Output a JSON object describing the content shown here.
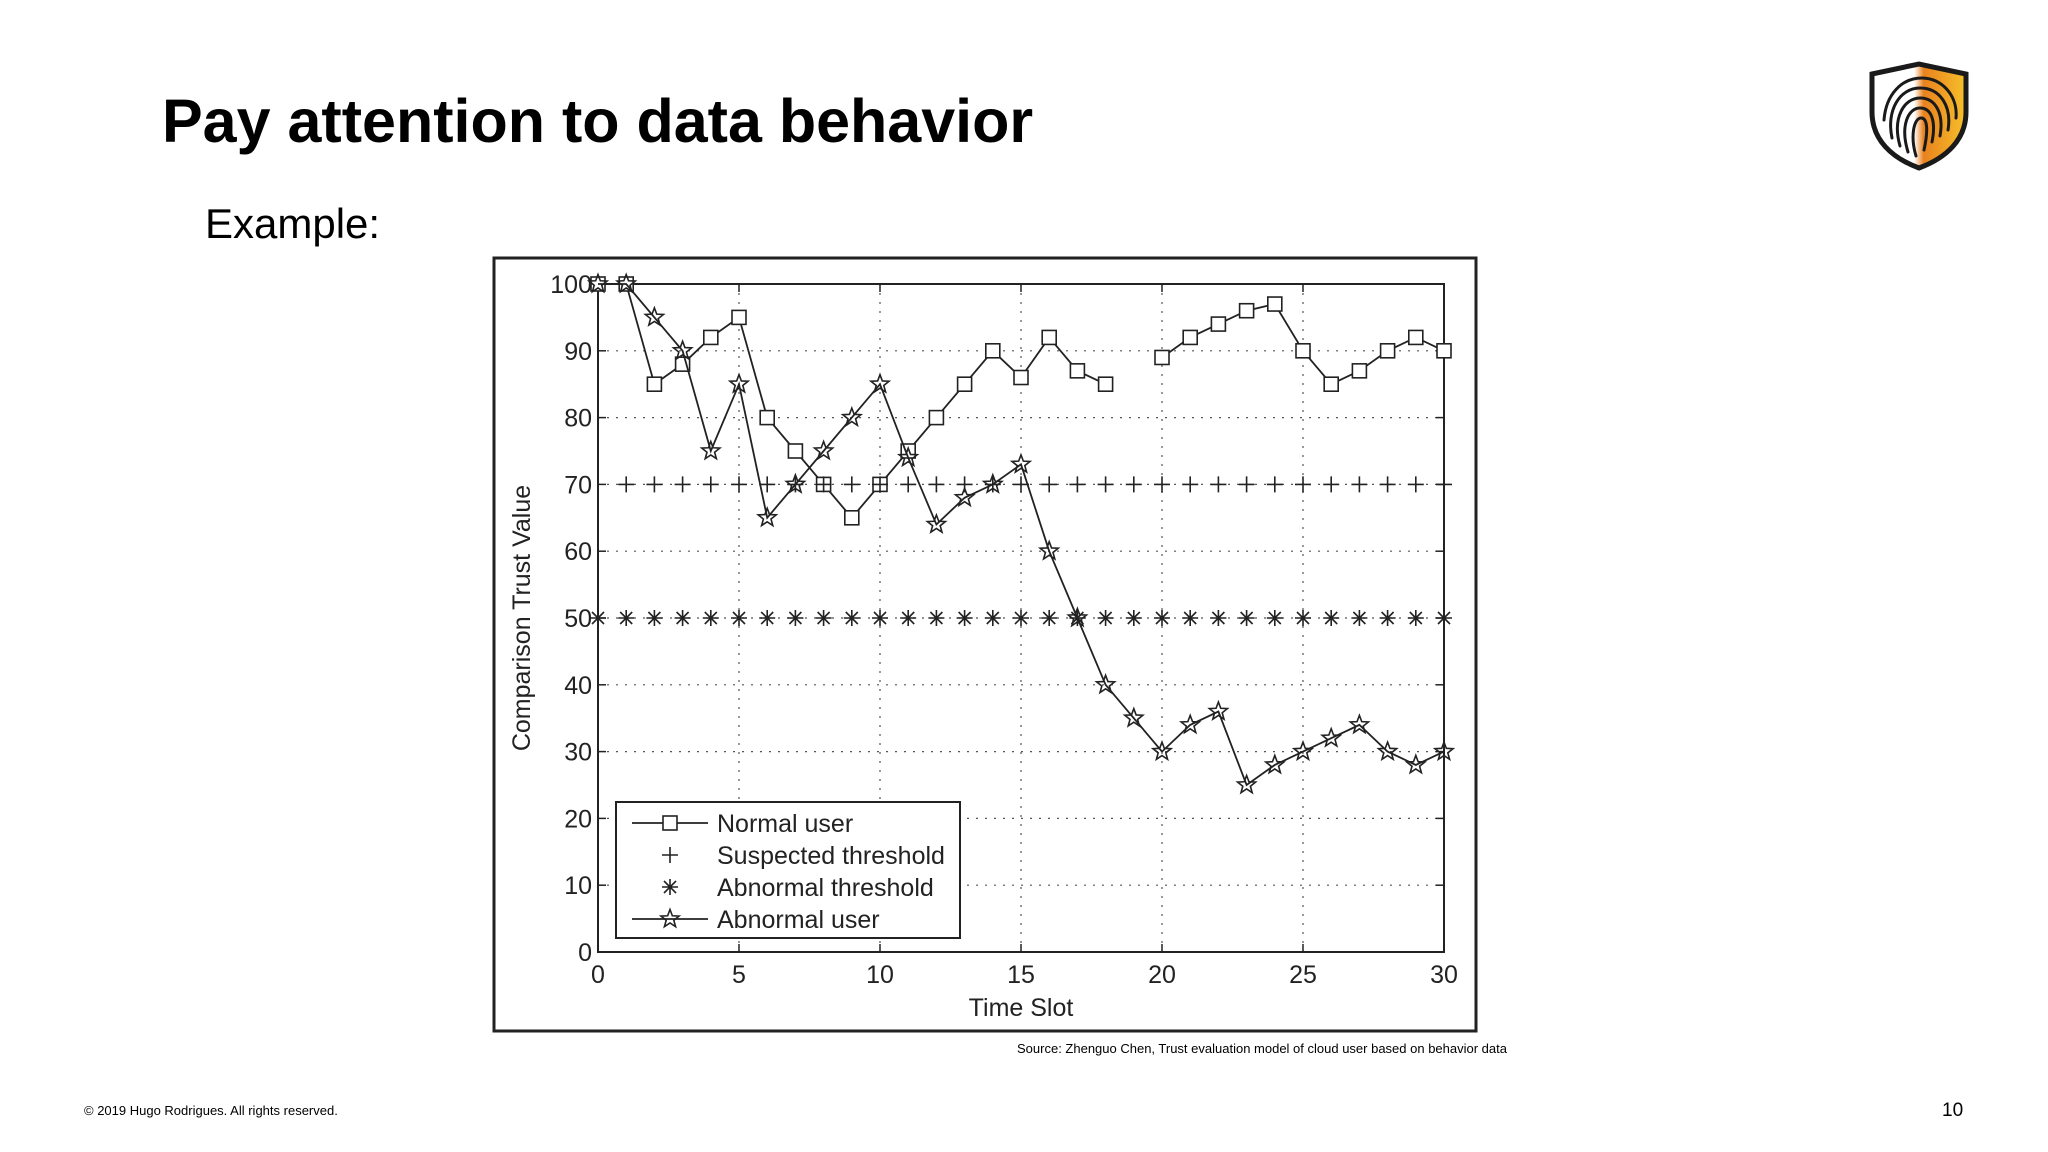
{
  "slide": {
    "title": "Pay attention to data behavior",
    "subtitle": "Example:",
    "source_note": "Source: Zhenguo Chen, Trust evaluation model of cloud user based on behavior data",
    "copyright": "© 2019 Hugo Rodrigues. All rights reserved.",
    "page_number": "10",
    "logo_icon": "fingerprint-shield-icon",
    "colors": {
      "logo_dark": "#1a1a1a",
      "logo_orange": "#e8821e",
      "logo_yellow": "#f6c02a",
      "text": "#000000"
    }
  },
  "chart_data": {
    "type": "line",
    "title": "",
    "xlabel": "Time Slot",
    "ylabel": "Comparison Trust Value",
    "xlim": [
      0,
      30
    ],
    "ylim": [
      0,
      100
    ],
    "xticks": [
      0,
      5,
      10,
      15,
      20,
      25,
      30
    ],
    "yticks": [
      0,
      10,
      20,
      30,
      40,
      50,
      60,
      70,
      80,
      90,
      100
    ],
    "grid": "dotted",
    "legend_position": "bottom-left",
    "x": [
      0,
      1,
      2,
      3,
      4,
      5,
      6,
      7,
      8,
      9,
      10,
      11,
      12,
      13,
      14,
      15,
      16,
      17,
      18,
      19,
      20,
      21,
      22,
      23,
      24,
      25,
      26,
      27,
      28,
      29,
      30
    ],
    "series": [
      {
        "name": "Normal user",
        "marker": "square",
        "line": true,
        "values": [
          100,
          100,
          85,
          88,
          92,
          95,
          80,
          75,
          70,
          65,
          70,
          75,
          80,
          85,
          90,
          86,
          92,
          87,
          85,
          null,
          89,
          92,
          94,
          96,
          97,
          90,
          85,
          87,
          90,
          92,
          90
        ]
      },
      {
        "name": "Suspected threshold",
        "marker": "plus",
        "line": false,
        "values": [
          null,
          70,
          70,
          70,
          70,
          70,
          70,
          70,
          70,
          70,
          70,
          70,
          70,
          70,
          70,
          70,
          70,
          70,
          70,
          70,
          70,
          70,
          70,
          70,
          70,
          70,
          70,
          70,
          70,
          70,
          70
        ]
      },
      {
        "name": "Abnormal threshold",
        "marker": "asterisk",
        "line": false,
        "values": [
          50,
          50,
          50,
          50,
          50,
          50,
          50,
          50,
          50,
          50,
          50,
          50,
          50,
          50,
          50,
          50,
          50,
          50,
          50,
          50,
          50,
          50,
          50,
          50,
          50,
          50,
          50,
          50,
          50,
          50,
          50
        ]
      },
      {
        "name": "Abnormal user",
        "marker": "star",
        "line": true,
        "values": [
          100,
          100,
          95,
          90,
          75,
          85,
          65,
          70,
          75,
          80,
          85,
          74,
          64,
          68,
          70,
          73,
          60,
          50,
          40,
          35,
          30,
          34,
          36,
          25,
          28,
          30,
          32,
          34,
          30,
          28,
          30
        ]
      }
    ]
  }
}
